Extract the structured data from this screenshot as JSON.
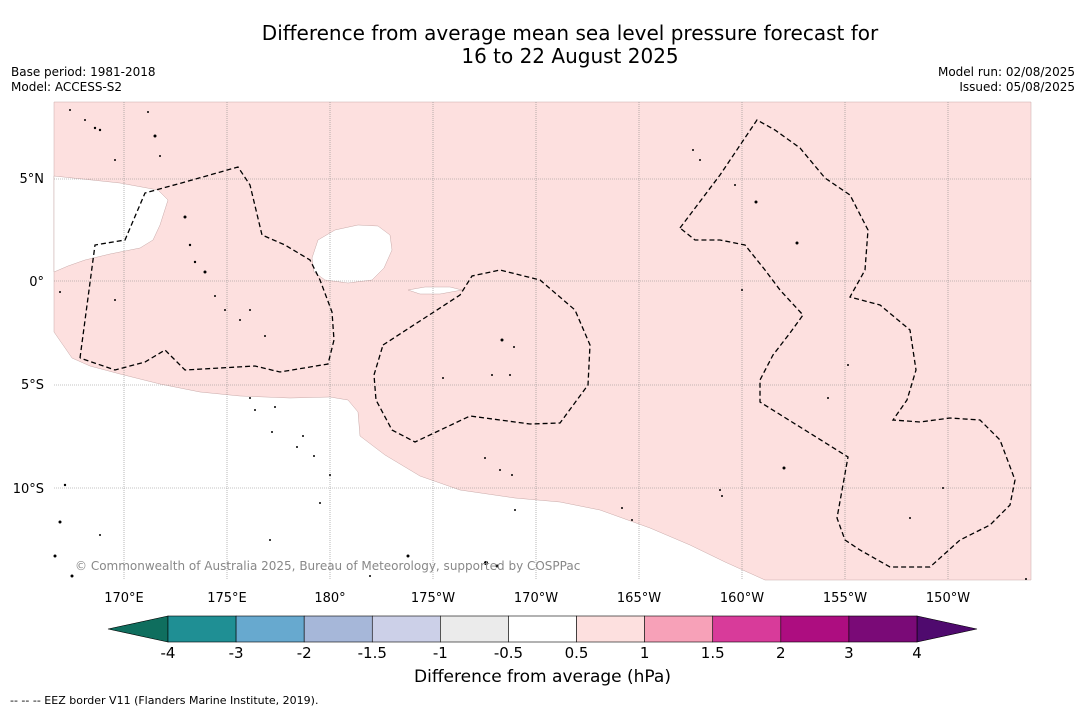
{
  "title_line1": "Difference from average mean sea level pressure forecast for",
  "title_line2": "16 to 22 August 2025",
  "meta_left": {
    "base_period": "Base period: 1981-2018",
    "model": "Model: ACCESS-S2"
  },
  "meta_right": {
    "model_run": "Model run: 02/08/2025",
    "issued": "Issued: 05/08/2025"
  },
  "lon_labels": [
    "170°E",
    "175°E",
    "180°",
    "175°W",
    "170°W",
    "165°W",
    "160°W",
    "155°W",
    "150°W"
  ],
  "lat_labels": [
    "5°N",
    "0°",
    "5°S",
    "10°S"
  ],
  "copyright": "© Commonwealth of Australia 2025, Bureau of Meteorology, supported by COSPPac",
  "colorbar": {
    "ticks": [
      "-4",
      "-3",
      "-2",
      "-1.5",
      "-1",
      "-0.5",
      "0.5",
      "1",
      "1.5",
      "2",
      "3",
      "4"
    ],
    "colors": [
      "#0f6e5e",
      "#1f8f94",
      "#67a9cf",
      "#a6b7d9",
      "#ccd0e8",
      "#ebebeb",
      "#ffffff",
      "#fde0df",
      "#f7a1b8",
      "#d83b9a",
      "#ad0d80",
      "#7a0a77",
      "#4f0a6e"
    ],
    "label": "Difference from average (hPa)"
  },
  "footer": "--  --  -- EEZ border V11 (Flanders Marine Institute, 2019)."
}
